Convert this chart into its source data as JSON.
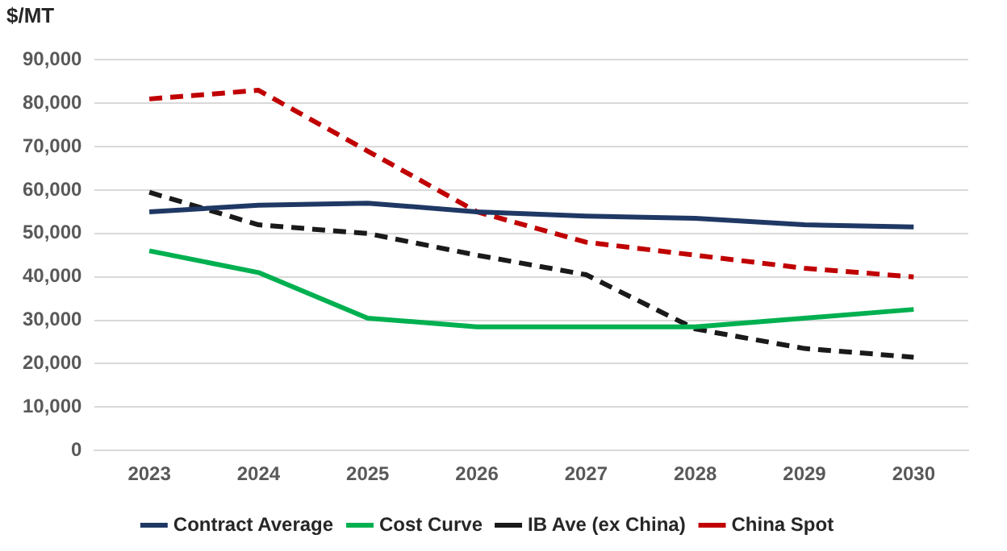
{
  "chart_data": {
    "type": "line",
    "ylabel": "$/MT",
    "categories": [
      "2023",
      "2024",
      "2025",
      "2026",
      "2027",
      "2028",
      "2029",
      "2030"
    ],
    "series": [
      {
        "name": "Contract Average",
        "color": "#1f3864",
        "line_style": "solid",
        "values": [
          55000,
          56500,
          57000,
          55000,
          54000,
          53500,
          52000,
          51500
        ]
      },
      {
        "name": "Cost Curve",
        "color": "#00b050",
        "line_style": "solid",
        "values": [
          46000,
          41000,
          30500,
          28500,
          28500,
          28500,
          30500,
          32500
        ]
      },
      {
        "name": "IB Ave (ex China)",
        "color": "#1a1a1a",
        "line_style": "dashed",
        "values": [
          59500,
          52000,
          50000,
          45000,
          40500,
          28000,
          23500,
          21500
        ]
      },
      {
        "name": "China Spot",
        "color": "#c00000",
        "line_style": "dashed",
        "values": [
          81000,
          83000,
          69000,
          55000,
          48000,
          45000,
          42000,
          40000
        ]
      }
    ],
    "ylim": [
      0,
      90000
    ],
    "yticks": [
      0,
      {
        "value": 10000,
        "label": "10,000"
      },
      {
        "value": 20000,
        "label": "20,000"
      },
      {
        "value": 30000,
        "label": "30,000"
      },
      {
        "value": 40000,
        "label": "40,000"
      },
      {
        "value": 50000,
        "label": "50,000"
      },
      {
        "value": 60000,
        "label": "60,000"
      },
      {
        "value": 70000,
        "label": "70,000"
      },
      {
        "value": 80000,
        "label": "80,000"
      },
      {
        "value": 90000,
        "label": "90,000"
      }
    ],
    "grid": "y",
    "legend": "bottom",
    "marker": "none"
  }
}
